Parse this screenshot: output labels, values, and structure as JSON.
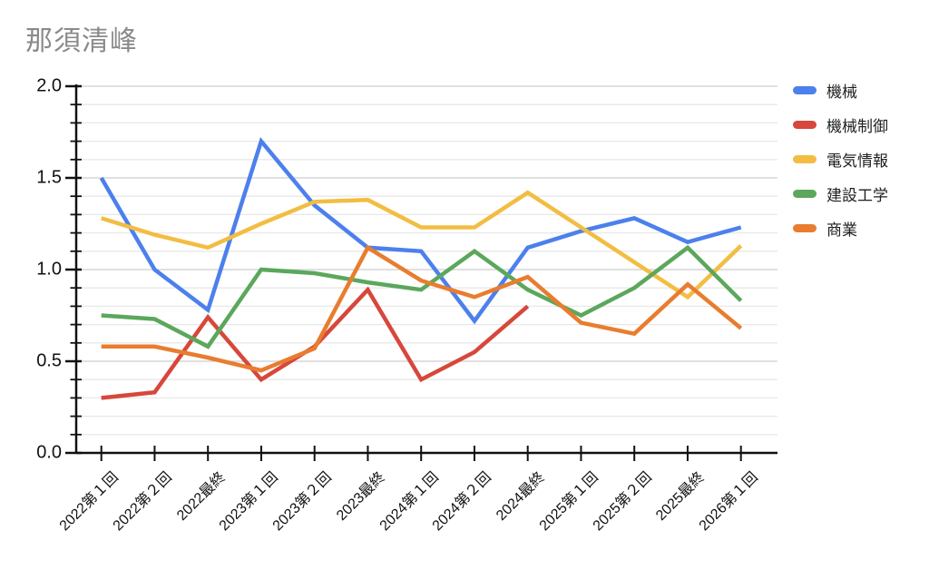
{
  "title": "那須清峰",
  "chart_data": {
    "type": "line",
    "categories": [
      "2022第１回",
      "2022第２回",
      "2022最終",
      "2023第１回",
      "2023第２回",
      "2023最終",
      "2024第１回",
      "2024第２回",
      "2024最終",
      "2025第１回",
      "2025第２回",
      "2025最終",
      "2026第１回"
    ],
    "series": [
      {
        "name": "機械",
        "color": "#4C80EC",
        "values": [
          1.5,
          1.0,
          0.78,
          1.7,
          1.35,
          1.12,
          1.1,
          0.72,
          1.12,
          1.21,
          1.28,
          1.15,
          1.23
        ]
      },
      {
        "name": "機械制御",
        "color": "#D7473B",
        "values": [
          0.3,
          0.33,
          0.74,
          0.4,
          0.58,
          0.89,
          0.4,
          0.55,
          0.8
        ]
      },
      {
        "name": "電気情報",
        "color": "#F2BD42",
        "values": [
          1.28,
          1.19,
          1.12,
          1.25,
          1.37,
          1.38,
          1.23,
          1.23,
          1.42,
          1.23,
          1.04,
          0.85,
          1.13
        ]
      },
      {
        "name": "建設工学",
        "color": "#5BA75C",
        "values": [
          0.75,
          0.73,
          0.58,
          1.0,
          0.98,
          0.93,
          0.89,
          1.1,
          0.89,
          0.75,
          0.9,
          1.12,
          0.83
        ]
      },
      {
        "name": "商業",
        "color": "#E87D2F",
        "values": [
          0.58,
          0.58,
          0.52,
          0.45,
          0.57,
          1.12,
          0.94,
          0.85,
          0.96,
          0.71,
          0.65,
          0.92,
          0.68
        ]
      }
    ],
    "title": "那須清峰",
    "xlabel": "",
    "ylabel": "",
    "ylim": [
      0.0,
      2.0
    ],
    "y_tick_labels": [
      "0.0",
      "0.5",
      "1.0",
      "1.5",
      "2.0"
    ],
    "y_minor_grid_step": 0.1,
    "grid": "on",
    "legend_position": "right"
  },
  "colors": {
    "title_text": "#8a8a8a",
    "axis": "#111111",
    "minor_grid": "#e8e8e8",
    "major_grid": "#cdcdcd",
    "label_text": "#111111"
  }
}
